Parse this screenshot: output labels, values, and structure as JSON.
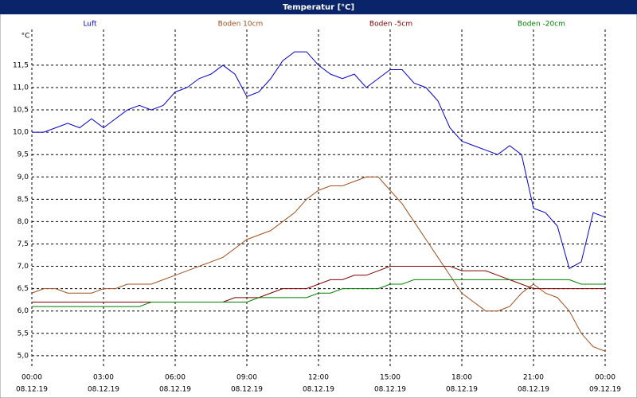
{
  "chart_data": {
    "type": "line",
    "title": "Temperatur [°C]",
    "y_unit": "°C",
    "x": [
      0,
      0.5,
      1,
      1.5,
      2,
      2.5,
      3,
      3.5,
      4,
      4.5,
      5,
      5.5,
      6,
      6.5,
      7,
      7.5,
      8,
      8.5,
      9,
      9.5,
      10,
      10.5,
      11,
      11.5,
      12,
      12.5,
      13,
      13.5,
      14,
      14.5,
      15,
      15.5,
      16,
      16.5,
      17,
      17.5,
      18,
      18.5,
      19,
      19.5,
      20,
      20.5,
      21,
      21.5,
      22,
      22.5,
      23,
      23.5,
      24
    ],
    "xlim": [
      0,
      24
    ],
    "xticks": [
      {
        "value": 0,
        "label": "00:00"
      },
      {
        "value": 3,
        "label": "03:00"
      },
      {
        "value": 6,
        "label": "06:00"
      },
      {
        "value": 9,
        "label": "09:00"
      },
      {
        "value": 12,
        "label": "12:00"
      },
      {
        "value": 15,
        "label": "15:00"
      },
      {
        "value": 18,
        "label": "18:00"
      },
      {
        "value": 21,
        "label": "21:00"
      },
      {
        "value": 24,
        "label": "00:00"
      }
    ],
    "xtick_dates": [
      "08.12.19",
      "08.12.19",
      "08.12.19",
      "08.12.19",
      "08.12.19",
      "08.12.19",
      "08.12.19",
      "08.12.19",
      "09.12.19"
    ],
    "ylim": [
      4.73,
      12.3
    ],
    "yticks": [
      {
        "value": 5,
        "label": "5,0"
      },
      {
        "value": 5.5,
        "label": "5,5"
      },
      {
        "value": 6,
        "label": "6,0"
      },
      {
        "value": 6.5,
        "label": "6,5"
      },
      {
        "value": 7,
        "label": "7,0"
      },
      {
        "value": 7.5,
        "label": "7,5"
      },
      {
        "value": 8,
        "label": "8,0"
      },
      {
        "value": 8.5,
        "label": "8,5"
      },
      {
        "value": 9,
        "label": "9,0"
      },
      {
        "value": 9.5,
        "label": "9,5"
      },
      {
        "value": 10,
        "label": "10,0"
      },
      {
        "value": 10.5,
        "label": "10,5"
      },
      {
        "value": 11,
        "label": "11,0"
      },
      {
        "value": 11.5,
        "label": "11,5"
      }
    ],
    "grid": true,
    "series": [
      {
        "name": "Luft",
        "color": "#0000cc",
        "values": [
          10.0,
          10.0,
          10.1,
          10.2,
          10.1,
          10.3,
          10.1,
          10.3,
          10.5,
          10.6,
          10.5,
          10.6,
          10.9,
          11.0,
          11.2,
          11.3,
          11.5,
          11.3,
          10.8,
          10.9,
          11.2,
          11.6,
          11.8,
          11.8,
          11.5,
          11.3,
          11.2,
          11.3,
          11.0,
          11.2,
          11.4,
          11.4,
          11.1,
          11.0,
          10.7,
          10.1,
          9.8,
          9.7,
          9.6,
          9.5,
          9.7,
          9.5,
          8.3,
          8.2,
          7.9,
          6.95,
          7.1,
          8.2,
          8.1
        ]
      },
      {
        "name": "Boden 10cm",
        "color": "#a0501e",
        "values": [
          6.4,
          6.5,
          6.5,
          6.4,
          6.4,
          6.4,
          6.5,
          6.5,
          6.6,
          6.6,
          6.6,
          6.7,
          6.8,
          6.9,
          7.0,
          7.1,
          7.2,
          7.4,
          7.6,
          7.7,
          7.8,
          8.0,
          8.2,
          8.5,
          8.7,
          8.8,
          8.8,
          8.9,
          9.0,
          9.0,
          8.7,
          8.4,
          8.0,
          7.6,
          7.2,
          6.8,
          6.4,
          6.2,
          6.0,
          6.0,
          6.1,
          6.4,
          6.6,
          6.4,
          6.3,
          6.0,
          5.5,
          5.2,
          5.1
        ]
      },
      {
        "name": "Boden -5cm",
        "color": "#800000",
        "values": [
          6.2,
          6.2,
          6.2,
          6.2,
          6.2,
          6.2,
          6.2,
          6.2,
          6.2,
          6.2,
          6.2,
          6.2,
          6.2,
          6.2,
          6.2,
          6.2,
          6.2,
          6.3,
          6.3,
          6.3,
          6.4,
          6.5,
          6.5,
          6.5,
          6.6,
          6.7,
          6.7,
          6.8,
          6.8,
          6.9,
          7.0,
          7.0,
          7.0,
          7.0,
          7.0,
          7.0,
          6.9,
          6.9,
          6.9,
          6.8,
          6.7,
          6.6,
          6.5,
          6.5,
          6.5,
          6.5,
          6.5,
          6.5,
          6.5
        ]
      },
      {
        "name": "Boden -20cm",
        "color": "#008000",
        "values": [
          6.1,
          6.1,
          6.1,
          6.1,
          6.1,
          6.1,
          6.1,
          6.1,
          6.1,
          6.1,
          6.2,
          6.2,
          6.2,
          6.2,
          6.2,
          6.2,
          6.2,
          6.2,
          6.2,
          6.3,
          6.3,
          6.3,
          6.3,
          6.3,
          6.4,
          6.4,
          6.5,
          6.5,
          6.5,
          6.5,
          6.6,
          6.6,
          6.7,
          6.7,
          6.7,
          6.7,
          6.7,
          6.7,
          6.7,
          6.7,
          6.7,
          6.7,
          6.7,
          6.7,
          6.7,
          6.7,
          6.6,
          6.6,
          6.6
        ]
      }
    ]
  }
}
